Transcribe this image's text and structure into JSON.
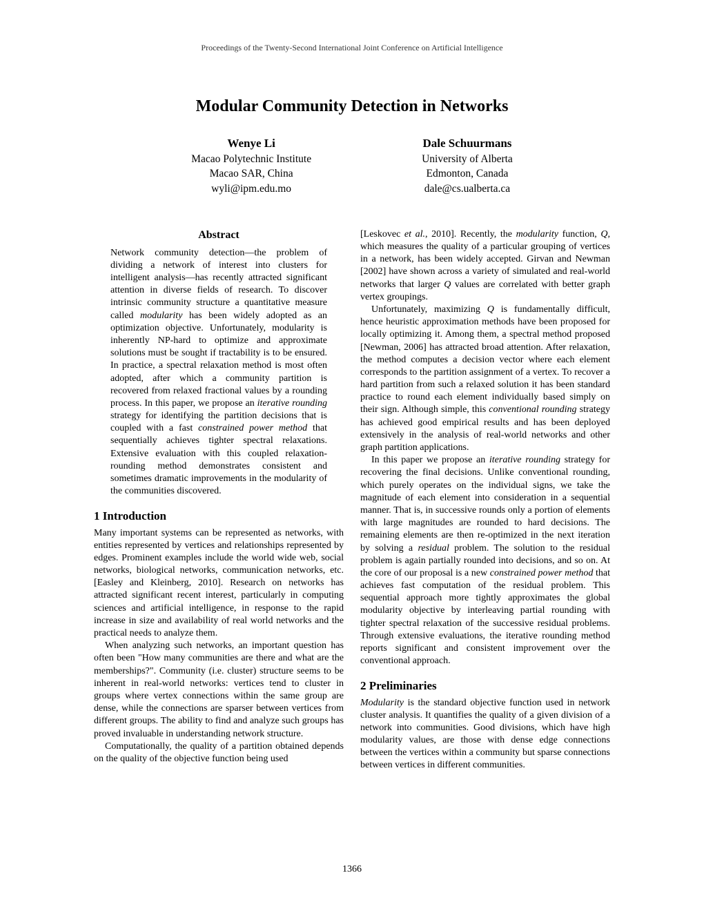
{
  "proceedings_header": "Proceedings of the Twenty-Second International Joint Conference on Artificial Intelligence",
  "title": "Modular Community Detection in Networks",
  "authors": [
    {
      "name": "Wenye Li",
      "affiliation1": "Macao Polytechnic Institute",
      "affiliation2": "Macao SAR, China",
      "email": "wyli@ipm.edu.mo"
    },
    {
      "name": "Dale Schuurmans",
      "affiliation1": "University of Alberta",
      "affiliation2": "Edmonton, Canada",
      "email": "dale@cs.ualberta.ca"
    }
  ],
  "abstract": {
    "heading": "Abstract",
    "body_html": "Network community detection—the problem of dividing a network of interest into clusters for intelligent analysis—has recently attracted significant attention in diverse fields of research. To discover intrinsic community structure a quantitative measure called <em>modularity</em> has been widely adopted as an optimization objective. Unfortunately, modularity is inherently NP-hard to optimize and approximate solutions must be sought if tractability is to be ensured. In practice, a spectral relaxation method is most often adopted, after which a community partition is recovered from relaxed fractional values by a rounding process. In this paper, we propose an <em>iterative rounding</em> strategy for identifying the partition decisions that is coupled with a fast <em>constrained power method</em> that sequentially achieves tighter spectral relaxations. Extensive evaluation with this coupled relaxation-rounding method demonstrates consistent and sometimes dramatic improvements in the modularity of the communities discovered."
  },
  "section1": {
    "heading": "1   Introduction",
    "p1_html": "Many important systems can be represented as networks, with entities represented by vertices and relationships represented by edges. Prominent examples include the world wide web, social networks, biological networks, communication networks, etc. [Easley and Kleinberg, 2010]. Research on networks has attracted significant recent interest, particularly in computing sciences and artificial intelligence, in response to the rapid increase in size and availability of real world networks and the practical needs to analyze them.",
    "p2_html": "When analyzing such networks, an important question has often been \"How many communities are there and what are the memberships?\". Community (i.e. cluster) structure seems to be inherent in real-world networks: vertices tend to cluster in groups where vertex connections within the same group are dense, while the connections are sparser between vertices from different groups. The ability to find and analyze such groups has proved invaluable in understanding network structure.",
    "p3_html": "Computationally, the quality of a partition obtained depends on the quality of the objective function being used"
  },
  "col2": {
    "p1_html": "[Leskovec <em>et al.</em>, 2010]. Recently, the <em>modularity</em> function, <em>Q</em>, which measures the quality of a particular grouping of vertices in a network, has been widely accepted. Girvan and Newman [2002] have shown across a variety of simulated and real-world networks that larger <em>Q</em> values are correlated with better graph vertex groupings.",
    "p2_html": "Unfortunately, maximizing <em>Q</em> is fundamentally difficult, hence heuristic approximation methods have been proposed for locally optimizing it. Among them, a spectral method proposed [Newman, 2006] has attracted broad attention. After relaxation, the method computes a decision vector where each element corresponds to the partition assignment of a vertex. To recover a hard partition from such a relaxed solution it has been standard practice to round each element individually based simply on their sign. Although simple, this <em>conventional rounding</em> strategy has achieved good empirical results and has been deployed extensively in the analysis of real-world networks and other graph partition applications.",
    "p3_html": "In this paper we propose an <em>iterative rounding</em> strategy for recovering the final decisions. Unlike conventional rounding, which purely operates on the individual signs, we take the magnitude of each element into consideration in a sequential manner. That is, in successive rounds only a portion of elements with large magnitudes are rounded to hard decisions. The remaining elements are then re-optimized in the next iteration by solving a <em>residual</em> problem. The solution to the residual problem is again partially rounded into decisions, and so on. At the core of our proposal is a new <em>constrained power method</em> that achieves fast computation of the residual problem. This sequential approach more tightly approximates the global modularity objective by interleaving partial rounding with tighter spectral relaxation of the successive residual problems. Through extensive evaluations, the iterative rounding method reports significant and consistent improvement over the conventional approach."
  },
  "section2": {
    "heading": "2   Preliminaries",
    "p1_html": "<em>Modularity</em> is the standard objective function used in network cluster analysis. It quantifies the quality of a given division of a network into communities. Good divisions, which have high modularity values, are those with dense edge connections between the vertices within a community but sparse connections between vertices in different communities."
  },
  "page_number": "1366"
}
